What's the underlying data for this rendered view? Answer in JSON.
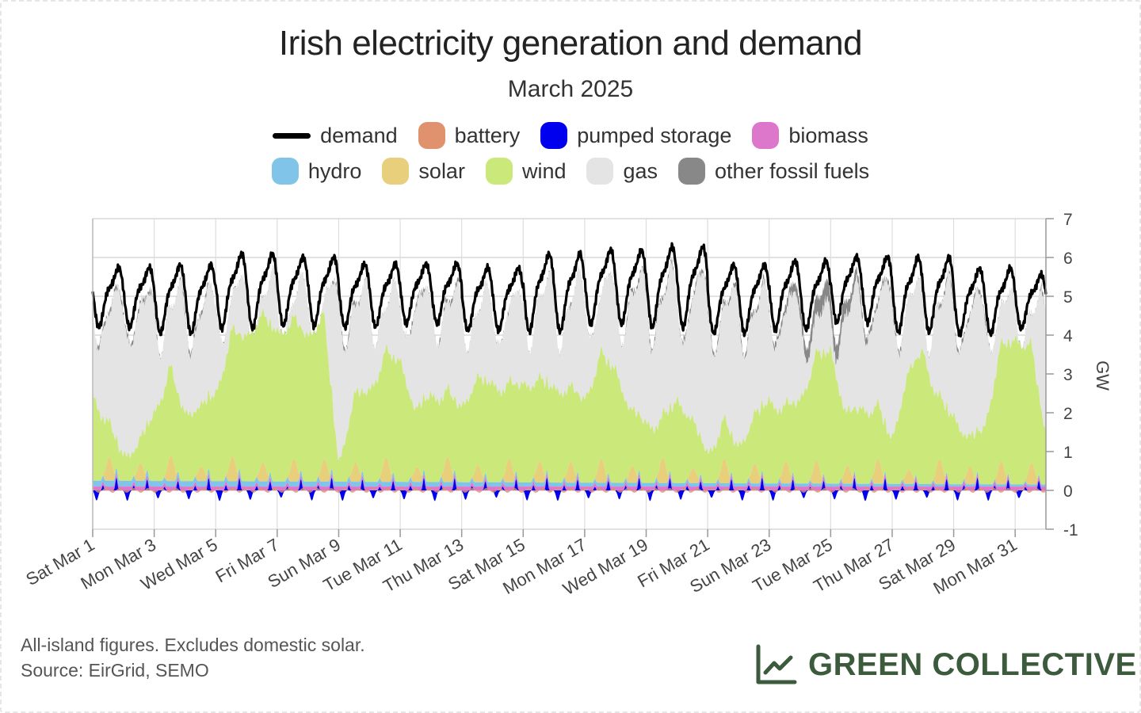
{
  "chart_data": {
    "type": "area",
    "title": "Irish electricity generation and demand",
    "subtitle": "March 2025",
    "ylabel": "GW",
    "xlabel": "",
    "ylim": [
      -1,
      7
    ],
    "yticks": [
      -1,
      0,
      1,
      2,
      3,
      4,
      5,
      6,
      7
    ],
    "xlim": [
      "2025-03-01",
      "2025-04-01"
    ],
    "grid": true,
    "legend_position": "top-center",
    "x_tick_labels": [
      "Sat Mar 1",
      "Mon Mar 3",
      "Wed Mar 5",
      "Fri Mar 7",
      "Sun Mar 9",
      "Tue Mar 11",
      "Thu Mar 13",
      "Sat Mar 15",
      "Mon Mar 17",
      "Wed Mar 19",
      "Fri Mar 21",
      "Sun Mar 23",
      "Tue Mar 25",
      "Thu Mar 27",
      "Sat Mar 29",
      "Mon Mar 31"
    ],
    "x_tick_dates": [
      "2025-03-01",
      "2025-03-03",
      "2025-03-05",
      "2025-03-07",
      "2025-03-09",
      "2025-03-11",
      "2025-03-13",
      "2025-03-15",
      "2025-03-17",
      "2025-03-19",
      "2025-03-21",
      "2025-03-23",
      "2025-03-25",
      "2025-03-27",
      "2025-03-29",
      "2025-03-31"
    ],
    "x_days": [
      1,
      1.5,
      2,
      2.5,
      3,
      3.5,
      4,
      4.5,
      5,
      5.5,
      6,
      6.5,
      7,
      7.5,
      8,
      8.5,
      9,
      9.5,
      10,
      10.5,
      11,
      11.5,
      12,
      12.5,
      13,
      13.5,
      14,
      14.5,
      15,
      15.5,
      16,
      16.5,
      17,
      17.5,
      18,
      18.5,
      19,
      19.5,
      20,
      20.5,
      21,
      21.5,
      22,
      22.5,
      23,
      23.5,
      24,
      24.5,
      25,
      25.5,
      26,
      26.5,
      27,
      27.5,
      28,
      28.5,
      29,
      29.5,
      30,
      30.5,
      31,
      31.5,
      32
    ],
    "demand_min_max": {
      "min": [
        3.9,
        3.7,
        3.8,
        3.9,
        3.9,
        4.0,
        3.8,
        3.7,
        3.9,
        3.8,
        3.7,
        3.8,
        4.0,
        3.7,
        3.7,
        3.9
      ],
      "max": [
        5.9,
        6.0,
        6.3,
        6.2,
        6.0,
        6.0,
        5.9,
        6.3,
        6.4,
        6.5,
        6.0,
        6.1,
        6.2,
        6.2,
        5.9,
        5.7
      ]
    },
    "series": [
      {
        "name": "pumped storage",
        "color": "#0000ee",
        "values_note": "oscillates daily between about -0.3 and +0.3 GW"
      },
      {
        "name": "biomass",
        "color": "#dd77cc",
        "values": [
          0.1,
          0.1,
          0.1,
          0.1,
          0.1,
          0.1,
          0.1,
          0.1,
          0.1,
          0.1,
          0.1,
          0.1,
          0.1,
          0.1,
          0.1,
          0.1
        ]
      },
      {
        "name": "hydro",
        "color": "#80c4ea",
        "values": [
          0.15,
          0.15,
          0.12,
          0.12,
          0.1,
          0.1,
          0.1,
          0.1,
          0.08,
          0.08,
          0.06,
          0.06,
          0.05,
          0.05,
          0.05,
          0.05
        ]
      },
      {
        "name": "solar",
        "color": "#e8cf7c",
        "values_note": "daytime peaks of about 0.3–0.7 GW, zero at night"
      },
      {
        "name": "wind",
        "color": "#cbe87a",
        "x_days": [
          1,
          1.5,
          2,
          2.5,
          3,
          3.5,
          4,
          4.5,
          5,
          5.5,
          6,
          6.5,
          7,
          7.5,
          8,
          8.5,
          9,
          9.5,
          10,
          10.5,
          11,
          11.5,
          12,
          12.5,
          13,
          13.5,
          14,
          14.5,
          15,
          15.5,
          16,
          16.5,
          17,
          17.5,
          18,
          18.5,
          19,
          19.5,
          20,
          20.5,
          21,
          21.5,
          22,
          22.5,
          23,
          23.5,
          24,
          24.5,
          25,
          25.5,
          26,
          26.5,
          27,
          27.5,
          28,
          28.5,
          29,
          29.5,
          30,
          30.5,
          31,
          31.5,
          32
        ],
        "values": [
          2.3,
          1.0,
          0.7,
          0.6,
          1.8,
          2.4,
          1.8,
          1.6,
          2.3,
          3.3,
          3.8,
          3.9,
          3.9,
          3.7,
          3.8,
          3.9,
          0.5,
          1.8,
          2.4,
          2.8,
          3.2,
          1.5,
          2.3,
          1.8,
          2.0,
          2.3,
          2.6,
          2.0,
          2.6,
          2.2,
          2.5,
          2.0,
          2.2,
          2.8,
          3.0,
          1.5,
          1.6,
          1.1,
          2.2,
          1.3,
          0.8,
          1.1,
          1.0,
          1.3,
          2.2,
          1.5,
          2.2,
          2.8,
          3.5,
          1.4,
          2.0,
          1.5,
          1.2,
          2.5,
          3.5,
          1.7,
          1.8,
          0.8,
          1.5,
          3.0,
          3.8,
          3.2,
          1.3
        ]
      },
      {
        "name": "gas",
        "color": "#e4e4e4",
        "values_note": "fills remaining demand, typically 1–4 GW"
      },
      {
        "name": "other fossil fuels",
        "color": "#888888",
        "values_note": "small, up to about 0.8 GW around Mar 24–26"
      },
      {
        "name": "battery",
        "color": "#e0926e",
        "values_note": "small, within about ±0.1 GW"
      },
      {
        "name": "demand",
        "color": "#000000",
        "type": "line",
        "values_note": "daily cycle between the min and max above"
      }
    ]
  },
  "legend": {
    "row1": [
      {
        "label": "demand",
        "color": "#000000",
        "shape": "line"
      },
      {
        "label": "battery",
        "color": "#e0926e",
        "shape": "rounded-square"
      },
      {
        "label": "pumped storage",
        "color": "#0000ee",
        "shape": "rounded-square"
      },
      {
        "label": "biomass",
        "color": "#dd77cc",
        "shape": "rounded-square"
      }
    ],
    "row2": [
      {
        "label": "hydro",
        "color": "#80c4ea",
        "shape": "rounded-square"
      },
      {
        "label": "solar",
        "color": "#e8cf7c",
        "shape": "rounded-square"
      },
      {
        "label": "wind",
        "color": "#cbe87a",
        "shape": "rounded-square"
      },
      {
        "label": "gas",
        "color": "#e4e4e4",
        "shape": "rounded-square"
      },
      {
        "label": "other fossil fuels",
        "color": "#888888",
        "shape": "rounded-square"
      }
    ]
  },
  "footer": {
    "note_line1": "All-island figures. Excludes domestic solar.",
    "note_line2": "Source: EirGrid, SEMO"
  },
  "brand": {
    "name": "GREEN COLLECTIVE",
    "icon": "line-chart-icon",
    "color": "#3c5a3c"
  }
}
